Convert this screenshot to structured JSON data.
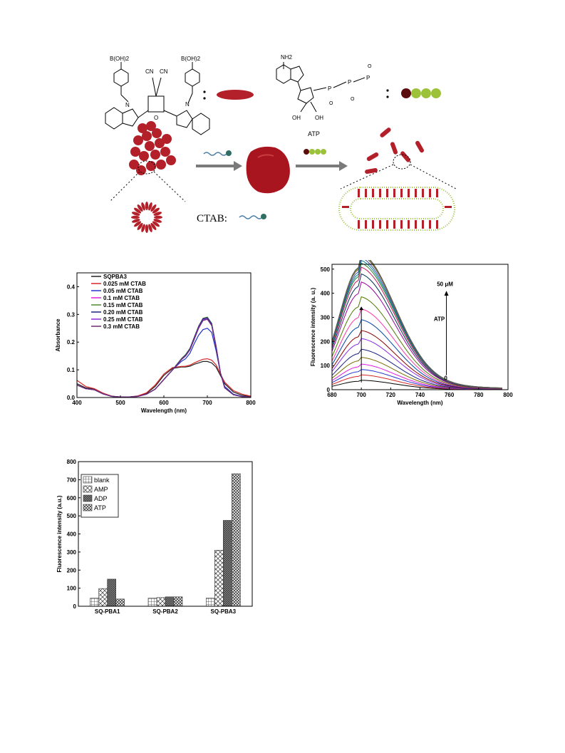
{
  "scheme": {
    "boronic_label": "B(OH)2",
    "cn_label": "CN",
    "amine_label": "NH2",
    "oh_label": "OH",
    "p_label": "P",
    "o_label": "O",
    "n_label": "N",
    "atp_arrow_label": "ATP",
    "ctab_label": "CTAB:",
    "colors": {
      "dye": "#b3202a",
      "atp_tail": "#9cc23a",
      "ctab_head": "#2f6f63",
      "ctab_tail": "#4a7fa8",
      "arrow": "#7a7a7a"
    }
  },
  "chart_data": [
    {
      "type": "line",
      "xlabel": "Wavelength (nm)",
      "ylabel": "Absorbance",
      "xlim": [
        400,
        800
      ],
      "ylim": [
        0,
        0.45
      ],
      "xticks": [
        400,
        500,
        600,
        700,
        800
      ],
      "yticks": [
        0.0,
        0.1,
        0.2,
        0.3,
        0.4
      ],
      "ytick_labels": [
        "0.0",
        "0.1",
        "0.2",
        "0.3",
        "0.4"
      ],
      "legend": "top-left",
      "x": [
        400,
        420,
        440,
        460,
        480,
        500,
        520,
        540,
        560,
        580,
        600,
        620,
        640,
        650,
        660,
        670,
        680,
        690,
        700,
        710,
        720,
        730,
        740,
        760,
        780,
        800
      ],
      "series": [
        {
          "name": "SQPBA3",
          "color": "#222222",
          "values": [
            0.05,
            0.035,
            0.03,
            0.015,
            0.005,
            0.002,
            0.002,
            0.005,
            0.015,
            0.04,
            0.08,
            0.105,
            0.11,
            0.11,
            0.113,
            0.12,
            0.125,
            0.13,
            0.13,
            0.125,
            0.11,
            0.08,
            0.05,
            0.02,
            0.008,
            0.003
          ]
        },
        {
          "name": "0.025 mM CTAB",
          "color": "#d62728",
          "values": [
            0.062,
            0.04,
            0.032,
            0.016,
            0.005,
            0.002,
            0.002,
            0.006,
            0.017,
            0.045,
            0.085,
            0.108,
            0.112,
            0.113,
            0.117,
            0.125,
            0.132,
            0.138,
            0.14,
            0.135,
            0.118,
            0.085,
            0.055,
            0.025,
            0.012,
            0.005
          ]
        },
        {
          "name": "0.05 mM CTAB",
          "color": "#2233cc",
          "values": [
            0.045,
            0.032,
            0.028,
            0.013,
            0.004,
            0.002,
            0.002,
            0.004,
            0.012,
            0.03,
            0.065,
            0.1,
            0.13,
            0.14,
            0.16,
            0.195,
            0.225,
            0.245,
            0.25,
            0.235,
            0.17,
            0.09,
            0.04,
            0.012,
            0.004,
            0.002
          ]
        },
        {
          "name": "0.1 mM CTAB",
          "color": "#e01ee0",
          "values": [
            0.045,
            0.032,
            0.028,
            0.013,
            0.004,
            0.002,
            0.002,
            0.004,
            0.012,
            0.03,
            0.065,
            0.1,
            0.138,
            0.152,
            0.175,
            0.215,
            0.255,
            0.283,
            0.288,
            0.265,
            0.185,
            0.09,
            0.035,
            0.01,
            0.003,
            0.002
          ]
        },
        {
          "name": "0.15 mM CTAB",
          "color": "#4d8a2a",
          "values": [
            0.045,
            0.032,
            0.028,
            0.013,
            0.004,
            0.002,
            0.002,
            0.004,
            0.012,
            0.03,
            0.065,
            0.1,
            0.14,
            0.155,
            0.178,
            0.218,
            0.258,
            0.286,
            0.29,
            0.268,
            0.187,
            0.09,
            0.035,
            0.01,
            0.003,
            0.002
          ]
        },
        {
          "name": "0.20 mM CTAB",
          "color": "#1a237e",
          "values": [
            0.045,
            0.032,
            0.028,
            0.013,
            0.004,
            0.002,
            0.002,
            0.004,
            0.012,
            0.03,
            0.065,
            0.1,
            0.138,
            0.153,
            0.176,
            0.216,
            0.256,
            0.284,
            0.288,
            0.266,
            0.186,
            0.09,
            0.035,
            0.01,
            0.003,
            0.002
          ]
        },
        {
          "name": "0.25 mM CTAB",
          "color": "#8a2be2",
          "values": [
            0.045,
            0.032,
            0.028,
            0.013,
            0.004,
            0.002,
            0.002,
            0.004,
            0.012,
            0.03,
            0.065,
            0.1,
            0.137,
            0.151,
            0.174,
            0.213,
            0.253,
            0.28,
            0.284,
            0.262,
            0.183,
            0.09,
            0.035,
            0.01,
            0.003,
            0.002
          ]
        },
        {
          "name": "0.3 mM CTAB",
          "color": "#6a2c70",
          "values": [
            0.045,
            0.032,
            0.028,
            0.013,
            0.004,
            0.002,
            0.002,
            0.004,
            0.012,
            0.03,
            0.065,
            0.1,
            0.136,
            0.15,
            0.172,
            0.21,
            0.25,
            0.278,
            0.282,
            0.26,
            0.18,
            0.09,
            0.035,
            0.01,
            0.003,
            0.002
          ]
        }
      ]
    },
    {
      "type": "line",
      "xlabel": "Wavelength (nm)",
      "ylabel": "Fluorescence intensity (a. u.)",
      "xlim": [
        680,
        800
      ],
      "ylim": [
        0,
        520
      ],
      "xticks": [
        680,
        700,
        720,
        740,
        760,
        780,
        800
      ],
      "yticks": [
        0,
        100,
        200,
        300,
        400,
        500
      ],
      "annotation_top": "50 μM",
      "annotation_mid": "ATP",
      "annotation_bottom": "0",
      "peak_x": 699,
      "peaks": [
        35,
        55,
        75,
        95,
        120,
        150,
        190,
        220,
        260,
        300,
        345,
        400,
        430,
        455,
        470,
        480,
        490,
        500,
        505,
        508
      ],
      "colors": [
        "#000000",
        "#d62728",
        "#2233cc",
        "#e01ee0",
        "#7a6a00",
        "#1a237e",
        "#8a2be2",
        "#8b0000",
        "#0044aa",
        "#ff33aa",
        "#4d7a00",
        "#990099",
        "#002d5a",
        "#c2185b",
        "#2e7d32",
        "#00838f",
        "#3949ab",
        "#6d4c41",
        "#6b8e23",
        "#5a5a5a"
      ]
    },
    {
      "type": "bar",
      "categories": [
        "SQ-PBA1",
        "SQ-PBA2",
        "SQ-PBA3"
      ],
      "ylabel": "Fluorescence intensity (a.u.)",
      "ylim": [
        0,
        800
      ],
      "yticks": [
        0,
        100,
        200,
        300,
        400,
        500,
        600,
        700,
        800
      ],
      "legend": "top-left",
      "series": [
        {
          "name": "blank",
          "pattern": "grid",
          "values": [
            45,
            45,
            45
          ]
        },
        {
          "name": "AMP",
          "pattern": "cross",
          "values": [
            98,
            48,
            310
          ]
        },
        {
          "name": "ADP",
          "pattern": "dense",
          "values": [
            150,
            52,
            475
          ]
        },
        {
          "name": "ATP",
          "pattern": "checker",
          "values": [
            40,
            52,
            733
          ]
        }
      ]
    }
  ]
}
